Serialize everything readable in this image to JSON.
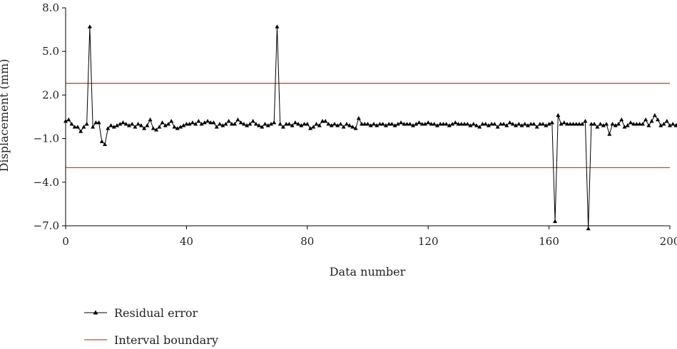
{
  "chart_data": {
    "type": "line",
    "title": "",
    "xlabel": "Data number",
    "ylabel": "Displacement (mm)",
    "xlim": [
      0,
      200
    ],
    "ylim": [
      -7.0,
      8.0
    ],
    "x_ticks": [
      0,
      40,
      80,
      120,
      160,
      200
    ],
    "x_tick_labels": [
      "0",
      "40",
      "80",
      "120",
      "160",
      "200"
    ],
    "y_ticks": [
      -7.0,
      -4.0,
      -1.0,
      2.0,
      5.0,
      8.0
    ],
    "y_tick_labels": [
      "−7.0",
      "−4.0",
      "−1.0",
      "2.0",
      "5.0",
      "8.0"
    ],
    "grid": false,
    "legend_position": "bottom-left",
    "series": [
      {
        "name": "Residual error",
        "color": "#000000",
        "marker": "triangle",
        "x_start": 0,
        "x_step": 1,
        "values": [
          0.2,
          0.3,
          0.0,
          -0.2,
          -0.2,
          -0.5,
          -0.2,
          0.0,
          6.7,
          -0.2,
          0.1,
          0.1,
          -1.2,
          -1.4,
          -0.3,
          -0.1,
          -0.2,
          -0.1,
          0.0,
          0.1,
          0.0,
          -0.1,
          0.0,
          -0.2,
          0.0,
          -0.1,
          -0.3,
          -0.1,
          0.3,
          -0.3,
          -0.4,
          -0.2,
          0.1,
          -0.1,
          0.0,
          0.2,
          -0.2,
          -0.3,
          -0.2,
          -0.1,
          0.0,
          0.0,
          0.1,
          0.0,
          0.2,
          0.0,
          0.1,
          0.2,
          0.1,
          0.1,
          -0.2,
          0.0,
          -0.1,
          0.0,
          0.2,
          0.0,
          0.0,
          0.3,
          0.1,
          0.0,
          -0.1,
          0.0,
          0.2,
          0.0,
          -0.1,
          -0.2,
          0.0,
          -0.1,
          0.0,
          0.1,
          6.7,
          0.0,
          -0.2,
          0.0,
          0.0,
          -0.1,
          0.1,
          0.0,
          -0.1,
          0.0,
          0.0,
          -0.3,
          -0.2,
          0.0,
          -0.1,
          0.2,
          0.2,
          0.0,
          -0.1,
          0.0,
          -0.1,
          0.0,
          -0.2,
          0.0,
          -0.1,
          -0.2,
          -0.3,
          0.4,
          0.0,
          0.0,
          0.0,
          -0.1,
          0.0,
          -0.1,
          0.0,
          0.0,
          -0.1,
          0.0,
          0.0,
          -0.1,
          0.0,
          0.1,
          0.0,
          0.0,
          0.0,
          -0.1,
          0.0,
          0.1,
          0.0,
          0.0,
          0.1,
          0.0,
          0.0,
          -0.1,
          0.0,
          0.0,
          0.0,
          -0.1,
          0.0,
          0.1,
          0.0,
          0.0,
          0.0,
          0.0,
          -0.1,
          0.0,
          -0.1,
          -0.2,
          0.0,
          0.0,
          -0.1,
          0.0,
          0.0,
          -0.2,
          0.0,
          0.0,
          -0.1,
          0.1,
          0.0,
          -0.1,
          0.0,
          -0.1,
          0.0,
          -0.1,
          0.0,
          0.0,
          -0.2,
          0.0,
          0.0,
          -0.1,
          0.0,
          0.1,
          -6.7,
          0.6,
          0.0,
          0.1,
          0.0,
          0.0,
          0.0,
          0.0,
          0.0,
          0.0,
          0.2,
          -7.2,
          0.0,
          0.0,
          -0.2,
          0.0,
          -0.1,
          0.0,
          -0.7,
          0.0,
          -0.1,
          0.0,
          0.3,
          -0.2,
          -0.1,
          0.1,
          0.0,
          0.0,
          0.0,
          0.0,
          0.3,
          -0.1,
          0.2,
          0.6,
          0.3,
          -0.1,
          0.0,
          0.2,
          -0.1,
          0.0,
          -0.1,
          0.2,
          0.0
        ]
      },
      {
        "name": "Interval boundary",
        "color": "#d9412b",
        "values": [
          2.8,
          2.8
        ],
        "x": [
          0,
          200
        ]
      },
      {
        "name": "Interval boundary (lower)",
        "color": "#d9412b",
        "values": [
          -3.0,
          -3.0
        ],
        "x": [
          0,
          200
        ]
      }
    ]
  },
  "legend": {
    "items": [
      {
        "label": "Residual error",
        "color": "#000000",
        "marker": "triangle"
      },
      {
        "label": "Interval boundary",
        "color": "#d9412b",
        "marker": "none"
      }
    ]
  }
}
